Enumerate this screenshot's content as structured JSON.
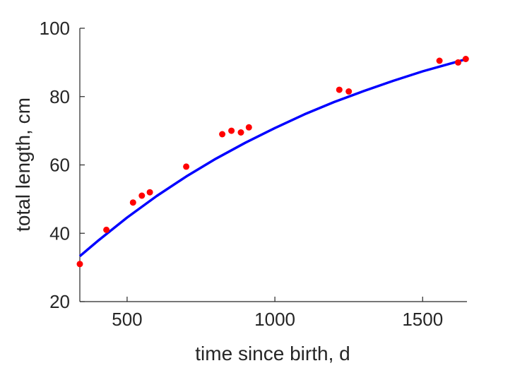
{
  "chart_data": {
    "type": "scatter",
    "xlabel": "time since birth, d",
    "ylabel": "total length, cm",
    "xlim": [
      340,
      1650
    ],
    "ylim": [
      20,
      100
    ],
    "x_ticks": [
      500,
      1000,
      1500
    ],
    "y_ticks": [
      20,
      40,
      60,
      80,
      100
    ],
    "x_tick_labels": [
      "500",
      "1000",
      "1500"
    ],
    "y_tick_labels": [
      "20",
      "40",
      "60",
      "80",
      "100"
    ],
    "grid": false,
    "series": [
      {
        "kind": "points",
        "color": "#ff0000",
        "x": [
          340,
          430,
          520,
          550,
          577,
          700,
          822,
          853,
          885,
          912,
          1218,
          1250,
          1557,
          1620,
          1646
        ],
        "y": [
          31.0,
          41.0,
          49.0,
          51.0,
          52.0,
          59.5,
          69.0,
          70.0,
          69.5,
          71.0,
          82.0,
          81.5,
          90.5,
          90.0,
          91.0
        ]
      },
      {
        "kind": "fit-line",
        "color": "#0000ff",
        "x": [
          340,
          400,
          500,
          600,
          700,
          800,
          900,
          1000,
          1100,
          1200,
          1300,
          1400,
          1500,
          1600,
          1650
        ],
        "y": [
          33.3,
          37.7,
          44.6,
          50.9,
          56.6,
          61.8,
          66.5,
          70.8,
          74.8,
          78.4,
          81.6,
          84.6,
          87.4,
          89.8,
          91.0
        ]
      }
    ]
  }
}
